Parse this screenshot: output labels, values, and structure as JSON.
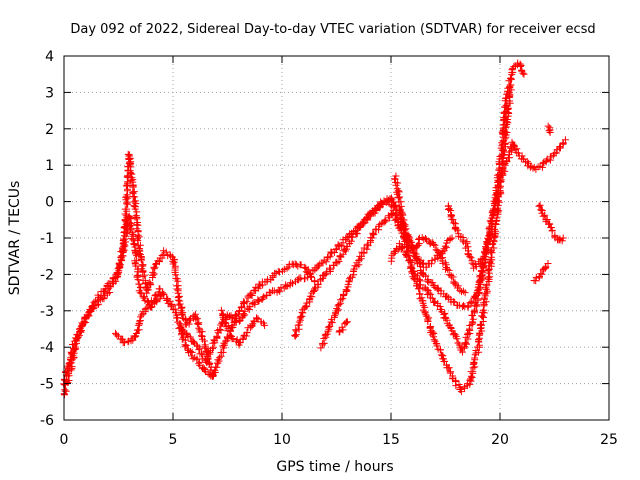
{
  "chart_data": {
    "type": "scatter",
    "title": "Day 092 of 2022, Sidereal Day-to-day VTEC variation (SDTVAR) for receiver ecsd",
    "xlabel": "GPS time / hours",
    "ylabel": "SDTVAR / TECUs",
    "xlim": [
      0,
      25
    ],
    "ylim": [
      -6,
      4
    ],
    "xticks": [
      0,
      5,
      10,
      15,
      20,
      25
    ],
    "yticks": [
      -6,
      -5,
      -4,
      -3,
      -2,
      -1,
      0,
      1,
      2,
      3,
      4
    ],
    "grid": true,
    "marker": "+",
    "series": [
      {
        "name": "ecsd",
        "color": "#ff0000",
        "tracks": [
          [
            [
              0.0,
              -5.3
            ],
            [
              0.3,
              -4.6
            ],
            [
              0.6,
              -3.8
            ],
            [
              1.0,
              -3.2
            ],
            [
              1.5,
              -2.8
            ],
            [
              2.0,
              -2.5
            ],
            [
              2.4,
              -2.1
            ],
            [
              2.7,
              -1.4
            ],
            [
              3.0,
              -0.4
            ],
            [
              3.2,
              -1.2
            ],
            [
              3.5,
              -2.5
            ],
            [
              4.0,
              -2.9
            ],
            [
              4.5,
              -2.5
            ],
            [
              5.0,
              -2.9
            ],
            [
              5.5,
              -3.6
            ],
            [
              6.0,
              -3.9
            ],
            [
              6.5,
              -4.4
            ],
            [
              7.0,
              -3.7
            ],
            [
              7.5,
              -3.1
            ],
            [
              8.0,
              -3.3
            ],
            [
              8.5,
              -2.9
            ],
            [
              9.0,
              -2.7
            ],
            [
              9.5,
              -2.5
            ],
            [
              10.0,
              -2.4
            ],
            [
              10.5,
              -2.2
            ],
            [
              11.0,
              -2.1
            ],
            [
              11.5,
              -1.9
            ],
            [
              12.0,
              -1.6
            ],
            [
              12.5,
              -1.3
            ],
            [
              13.0,
              -1.0
            ],
            [
              13.5,
              -0.7
            ],
            [
              14.0,
              -0.4
            ],
            [
              14.5,
              -0.1
            ],
            [
              15.0,
              0.1
            ],
            [
              15.4,
              -0.3
            ],
            [
              16.0,
              -1.3
            ],
            [
              16.5,
              -2.0
            ],
            [
              17.0,
              -2.3
            ],
            [
              17.5,
              -2.6
            ],
            [
              18.0,
              -2.8
            ],
            [
              18.5,
              -2.9
            ],
            [
              19.0,
              -2.5
            ],
            [
              19.3,
              -1.5
            ],
            [
              19.6,
              -0.6
            ],
            [
              19.8,
              0.1
            ],
            [
              20.0,
              0.6
            ],
            [
              20.3,
              1.1
            ],
            [
              20.6,
              1.6
            ],
            [
              21.0,
              1.2
            ],
            [
              21.5,
              0.9
            ],
            [
              22.0,
              1.0
            ],
            [
              22.5,
              1.3
            ],
            [
              23.0,
              1.7
            ]
          ],
          [
            [
              0.0,
              -5.0
            ],
            [
              0.4,
              -4.0
            ],
            [
              0.8,
              -3.4
            ],
            [
              1.2,
              -3.0
            ],
            [
              1.6,
              -2.6
            ],
            [
              2.0,
              -2.3
            ],
            [
              2.5,
              -2.0
            ],
            [
              2.8,
              -0.8
            ],
            [
              3.0,
              1.3
            ],
            [
              3.2,
              0.2
            ],
            [
              3.5,
              -1.5
            ],
            [
              3.8,
              -2.5
            ],
            [
              4.2,
              -1.8
            ],
            [
              4.6,
              -1.4
            ],
            [
              5.0,
              -1.5
            ],
            [
              5.3,
              -2.8
            ],
            [
              5.6,
              -3.4
            ],
            [
              6.0,
              -3.1
            ],
            [
              6.4,
              -3.8
            ],
            [
              6.8,
              -4.8
            ],
            [
              7.2,
              -4.2
            ],
            [
              7.6,
              -3.6
            ],
            [
              8.0,
              -3.0
            ],
            [
              8.5,
              -2.6
            ],
            [
              9.0,
              -2.3
            ],
            [
              9.5,
              -2.1
            ],
            [
              10.0,
              -1.9
            ],
            [
              10.5,
              -1.7
            ],
            [
              11.0,
              -1.8
            ],
            [
              11.5,
              -2.2
            ]
          ],
          [
            [
              2.4,
              -3.6
            ],
            [
              2.8,
              -3.9
            ],
            [
              3.2,
              -3.8
            ],
            [
              3.6,
              -3.1
            ],
            [
              4.0,
              -2.8
            ],
            [
              4.4,
              -2.4
            ]
          ],
          [
            [
              5.3,
              -3.4
            ],
            [
              5.6,
              -4.0
            ],
            [
              6.0,
              -4.3
            ],
            [
              6.4,
              -4.6
            ],
            [
              6.8,
              -4.8
            ]
          ],
          [
            [
              7.2,
              -3.0
            ],
            [
              7.6,
              -3.6
            ],
            [
              8.0,
              -3.9
            ],
            [
              8.4,
              -3.6
            ],
            [
              8.8,
              -3.2
            ],
            [
              9.2,
              -3.4
            ]
          ],
          [
            [
              10.6,
              -3.7
            ],
            [
              11.0,
              -3.0
            ],
            [
              11.5,
              -2.4
            ],
            [
              12.0,
              -2.0
            ],
            [
              12.6,
              -1.6
            ],
            [
              13.1,
              -1.1
            ],
            [
              13.6,
              -0.7
            ],
            [
              14.1,
              -0.3
            ],
            [
              14.6,
              0.0
            ],
            [
              15.0,
              0.0
            ],
            [
              15.4,
              -0.6
            ],
            [
              15.8,
              -1.2
            ],
            [
              16.2,
              -1.6
            ],
            [
              16.6,
              -1.8
            ],
            [
              17.0,
              -1.6
            ],
            [
              17.4,
              -1.3
            ],
            [
              17.8,
              -1.0
            ]
          ],
          [
            [
              11.8,
              -4.0
            ],
            [
              12.3,
              -3.3
            ],
            [
              12.8,
              -2.6
            ],
            [
              13.3,
              -1.9
            ],
            [
              13.8,
              -1.3
            ],
            [
              14.3,
              -0.8
            ],
            [
              14.7,
              -0.5
            ],
            [
              15.1,
              -0.3
            ],
            [
              15.6,
              -1.0
            ],
            [
              16.0,
              -1.9
            ],
            [
              16.4,
              -2.3
            ],
            [
              16.8,
              -2.6
            ],
            [
              17.2,
              -2.9
            ],
            [
              17.6,
              -3.3
            ],
            [
              18.0,
              -3.8
            ],
            [
              18.3,
              -4.1
            ],
            [
              18.6,
              -3.6
            ],
            [
              19.0,
              -2.5
            ],
            [
              19.4,
              -1.2
            ],
            [
              19.8,
              0.0
            ],
            [
              20.1,
              1.6
            ],
            [
              20.3,
              2.8
            ],
            [
              20.6,
              3.7
            ],
            [
              20.9,
              3.8
            ],
            [
              21.1,
              3.5
            ]
          ],
          [
            [
              12.6,
              -3.6
            ],
            [
              13.0,
              -3.3
            ]
          ],
          [
            [
              15.0,
              -1.6
            ],
            [
              15.4,
              -1.2
            ],
            [
              15.8,
              -1.6
            ],
            [
              16.2,
              -2.3
            ],
            [
              16.6,
              -3.1
            ],
            [
              17.0,
              -3.8
            ],
            [
              17.4,
              -4.3
            ],
            [
              17.8,
              -4.8
            ],
            [
              18.2,
              -5.2
            ],
            [
              18.6,
              -5.0
            ],
            [
              19.0,
              -4.0
            ],
            [
              19.3,
              -2.8
            ],
            [
              19.6,
              -1.5
            ],
            [
              19.9,
              -0.3
            ],
            [
              20.1,
              0.9
            ],
            [
              20.3,
              2.1
            ],
            [
              20.5,
              3.2
            ]
          ],
          [
            [
              15.2,
              0.7
            ],
            [
              15.4,
              0.0
            ],
            [
              15.6,
              -0.8
            ],
            [
              16.0,
              -1.3
            ],
            [
              16.4,
              -1.0
            ],
            [
              16.8,
              -1.1
            ],
            [
              17.2,
              -1.4
            ],
            [
              17.6,
              -1.9
            ],
            [
              18.0,
              -2.3
            ],
            [
              18.4,
              -2.5
            ]
          ],
          [
            [
              17.6,
              -0.1
            ],
            [
              18.0,
              -0.8
            ],
            [
              18.4,
              -1.1
            ],
            [
              18.8,
              -1.8
            ],
            [
              19.2,
              -1.6
            ]
          ],
          [
            [
              21.6,
              -2.2
            ],
            [
              21.9,
              -2.0
            ],
            [
              22.2,
              -1.7
            ]
          ],
          [
            [
              21.8,
              -0.1
            ],
            [
              22.1,
              -0.5
            ],
            [
              22.4,
              -0.8
            ],
            [
              22.7,
              -1.1
            ],
            [
              22.9,
              -1.0
            ]
          ],
          [
            [
              22.2,
              2.1
            ],
            [
              22.3,
              1.9
            ]
          ]
        ]
      }
    ]
  }
}
